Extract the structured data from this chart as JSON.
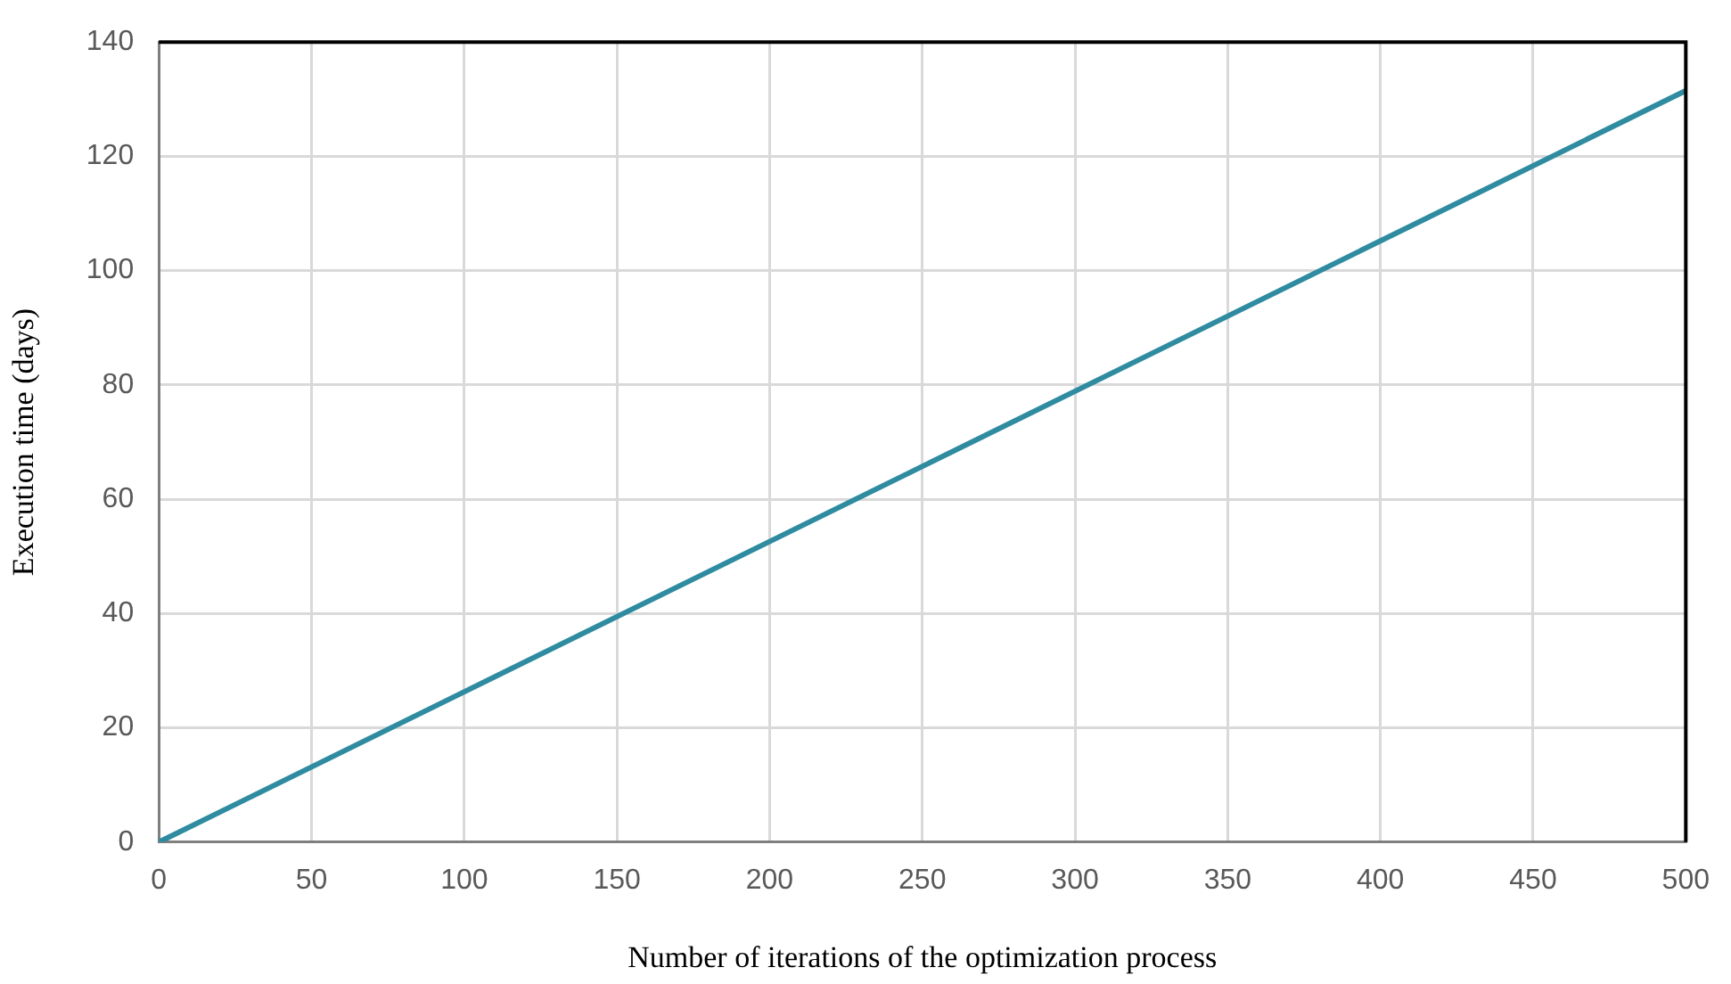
{
  "chart_data": {
    "type": "line",
    "xlabel": "Number of iterations of the optimization process",
    "ylabel": "Execution time (days)",
    "series": [
      {
        "color": "#2e8ba0",
        "x": [
          0,
          500
        ],
        "values": [
          0,
          131.5
        ]
      }
    ],
    "xlim": [
      0,
      500
    ],
    "xticks": [
      0,
      50,
      100,
      150,
      200,
      250,
      300,
      350,
      400,
      450,
      500
    ],
    "ylim": [
      0,
      140
    ],
    "yticks": [
      0,
      20,
      40,
      60,
      80,
      100,
      120,
      140
    ],
    "grid": true,
    "legend": false,
    "marker": "none",
    "line_style": "solid"
  }
}
